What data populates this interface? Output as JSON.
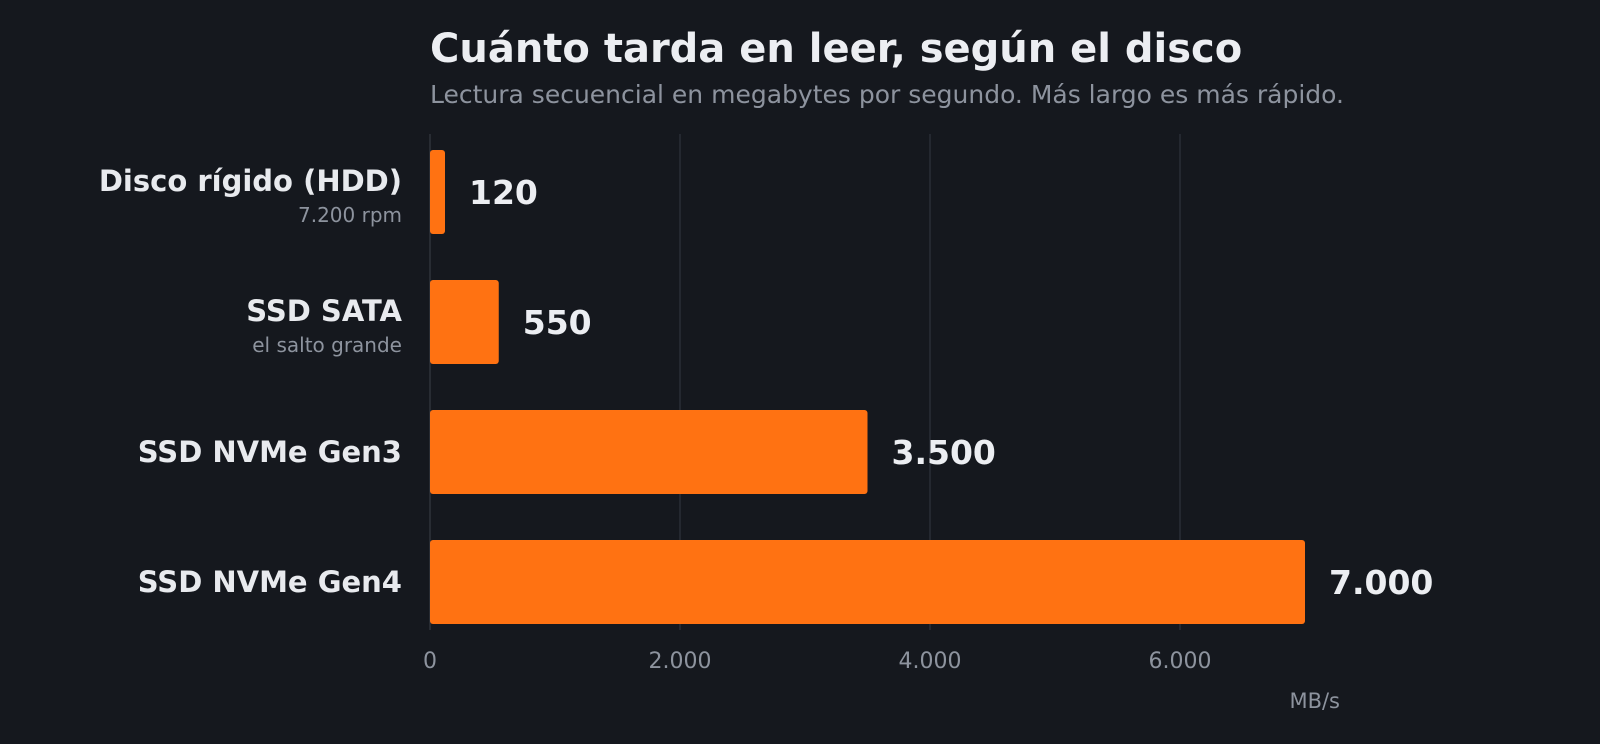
{
  "chart_data": {
    "type": "bar",
    "orientation": "horizontal",
    "title": "Cuánto tarda en leer, según el disco",
    "subtitle": "Lectura secuencial en megabytes por segundo. Más largo es más rápido.",
    "categories": [
      "Disco rígido (HDD)",
      "SSD SATA",
      "SSD NVMe Gen3",
      "SSD NVMe Gen4"
    ],
    "category_notes": [
      "7.200 rpm",
      "el salto grande",
      "",
      ""
    ],
    "values": [
      120,
      550,
      3500,
      7000
    ],
    "value_labels": [
      "120",
      "550",
      "3.500",
      "7.000"
    ],
    "xlabel": "MB/s",
    "ylabel": "",
    "xlim": [
      0,
      8000
    ],
    "x_ticks": [
      0,
      2000,
      4000,
      6000
    ],
    "x_tick_labels": [
      "0",
      "2.000",
      "4.000",
      "6.000"
    ],
    "grid": "vertical",
    "legend": "none",
    "bar_color": "#ff7212",
    "background_color": "#15181e"
  }
}
